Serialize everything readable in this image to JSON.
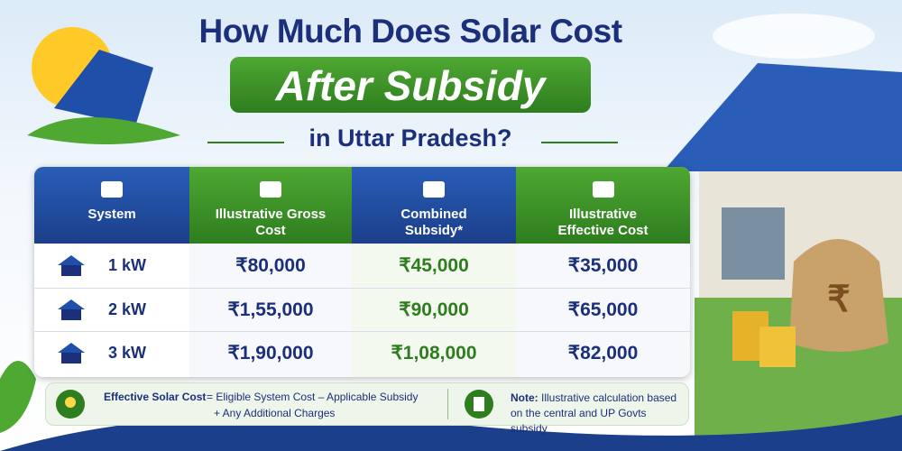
{
  "header": {
    "title_line1": "How Much Does Solar Cost",
    "title_line2": "After Subsidy",
    "title_line3": "in Uttar Pradesh?"
  },
  "table": {
    "headers": [
      "System",
      "Illustrative Gross Cost",
      "Combined Subsidy*",
      "Illustrative Effective Cost"
    ],
    "rows": [
      [
        "1 kW",
        "₹80,000",
        "₹45,000",
        "₹35,000"
      ],
      [
        "2 kW",
        "₹1,55,000",
        "₹90,000",
        "₹65,000"
      ],
      [
        "3 kW",
        "₹1,90,000",
        "₹1,08,000",
        "₹82,000"
      ]
    ]
  },
  "footer": {
    "formula_label": "Effective Solar Cost",
    "formula_line1": "= Eligible System Cost – Applicable Subsidy",
    "formula_line2": "+ Any Additional Charges",
    "note_label": "Note:",
    "note_text": "Illustrative calculation based on the central and UP Govts subsidy"
  }
}
